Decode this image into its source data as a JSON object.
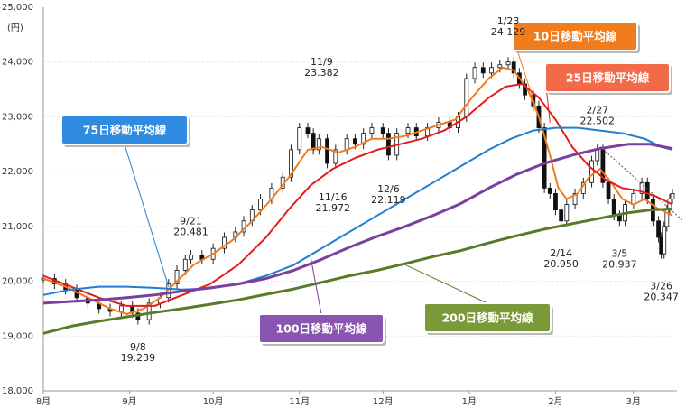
{
  "chart_data": {
    "type": "candlestick",
    "unit_label": "(円)",
    "ylim": [
      18000,
      25000
    ],
    "yticks": [
      {
        "value": 25000,
        "label": "25,000"
      },
      {
        "value": 24000,
        "label": "24,000"
      },
      {
        "value": 23000,
        "label": "23,000"
      },
      {
        "value": 22000,
        "label": "22,000"
      },
      {
        "value": 21000,
        "label": "21,000"
      },
      {
        "value": 20000,
        "label": "20,000"
      },
      {
        "value": 19000,
        "label": "19,000"
      },
      {
        "value": 18000,
        "label": "18,000"
      }
    ],
    "xlim": [
      0,
      226
    ],
    "months": [
      {
        "label": "8月",
        "day": 0
      },
      {
        "label": "9月",
        "day": 31
      },
      {
        "label": "10月",
        "day": 61
      },
      {
        "label": "11月",
        "day": 92
      },
      {
        "label": "12月",
        "day": 122
      },
      {
        "label": "1月",
        "day": 153
      },
      {
        "label": "2月",
        "day": 184
      },
      {
        "label": "3月",
        "day": 212
      }
    ],
    "closes": [
      {
        "day": 0,
        "value": 20050
      },
      {
        "day": 4,
        "value": 19950
      },
      {
        "day": 8,
        "value": 19850
      },
      {
        "day": 12,
        "value": 19700
      },
      {
        "day": 16,
        "value": 19600
      },
      {
        "day": 20,
        "value": 19500
      },
      {
        "day": 24,
        "value": 19450
      },
      {
        "day": 28,
        "value": 19550
      },
      {
        "day": 32,
        "value": 19420
      },
      {
        "day": 34,
        "value": 19300
      },
      {
        "day": 38,
        "value": 19600
      },
      {
        "day": 42,
        "value": 19700
      },
      {
        "day": 45,
        "value": 19950
      },
      {
        "day": 48,
        "value": 20200
      },
      {
        "day": 51,
        "value": 20400
      },
      {
        "day": 53,
        "value": 20480
      },
      {
        "day": 57,
        "value": 20400
      },
      {
        "day": 61,
        "value": 20600
      },
      {
        "day": 65,
        "value": 20800
      },
      {
        "day": 69,
        "value": 20900
      },
      {
        "day": 72,
        "value": 21100
      },
      {
        "day": 75,
        "value": 21300
      },
      {
        "day": 78,
        "value": 21500
      },
      {
        "day": 82,
        "value": 21700
      },
      {
        "day": 86,
        "value": 21900
      },
      {
        "day": 89,
        "value": 22400
      },
      {
        "day": 92,
        "value": 22800
      },
      {
        "day": 95,
        "value": 22700
      },
      {
        "day": 97,
        "value": 22400
      },
      {
        "day": 99,
        "value": 22600
      },
      {
        "day": 102,
        "value": 22150
      },
      {
        "day": 105,
        "value": 22400
      },
      {
        "day": 109,
        "value": 22600
      },
      {
        "day": 112,
        "value": 22500
      },
      {
        "day": 115,
        "value": 22700
      },
      {
        "day": 118,
        "value": 22800
      },
      {
        "day": 122,
        "value": 22700
      },
      {
        "day": 124,
        "value": 22300
      },
      {
        "day": 127,
        "value": 22700
      },
      {
        "day": 131,
        "value": 22800
      },
      {
        "day": 134,
        "value": 22650
      },
      {
        "day": 138,
        "value": 22800
      },
      {
        "day": 142,
        "value": 22900
      },
      {
        "day": 146,
        "value": 22800
      },
      {
        "day": 149,
        "value": 23000
      },
      {
        "day": 152,
        "value": 23700
      },
      {
        "day": 155,
        "value": 23900
      },
      {
        "day": 158,
        "value": 23800
      },
      {
        "day": 161,
        "value": 23900
      },
      {
        "day": 164,
        "value": 23950
      },
      {
        "day": 167,
        "value": 24000
      },
      {
        "day": 169,
        "value": 23800
      },
      {
        "day": 171,
        "value": 23600
      },
      {
        "day": 173,
        "value": 23400
      },
      {
        "day": 176,
        "value": 23200
      },
      {
        "day": 178,
        "value": 22800
      },
      {
        "day": 180,
        "value": 21700
      },
      {
        "day": 182,
        "value": 21600
      },
      {
        "day": 184,
        "value": 21300
      },
      {
        "day": 186,
        "value": 21100
      },
      {
        "day": 188,
        "value": 21400
      },
      {
        "day": 191,
        "value": 21600
      },
      {
        "day": 194,
        "value": 21800
      },
      {
        "day": 197,
        "value": 22200
      },
      {
        "day": 199,
        "value": 22400
      },
      {
        "day": 201,
        "value": 21800
      },
      {
        "day": 203,
        "value": 21500
      },
      {
        "day": 205,
        "value": 21200
      },
      {
        "day": 207,
        "value": 21100
      },
      {
        "day": 209,
        "value": 21400
      },
      {
        "day": 212,
        "value": 21600
      },
      {
        "day": 215,
        "value": 21800
      },
      {
        "day": 217,
        "value": 21500
      },
      {
        "day": 219,
        "value": 21100
      },
      {
        "day": 221,
        "value": 20800
      },
      {
        "day": 222,
        "value": 20500
      },
      {
        "day": 223,
        "value": 21000
      },
      {
        "day": 224,
        "value": 21300
      },
      {
        "day": 225,
        "value": 21500
      },
      {
        "day": 226,
        "value": 21600
      }
    ],
    "series": [
      {
        "name": "10日移動平均線",
        "color": "#f07c1e",
        "points": [
          {
            "day": 0,
            "value": 20050
          },
          {
            "day": 8,
            "value": 19900
          },
          {
            "day": 16,
            "value": 19700
          },
          {
            "day": 24,
            "value": 19500
          },
          {
            "day": 30,
            "value": 19400
          },
          {
            "day": 36,
            "value": 19500
          },
          {
            "day": 42,
            "value": 19700
          },
          {
            "day": 48,
            "value": 20000
          },
          {
            "day": 54,
            "value": 20300
          },
          {
            "day": 61,
            "value": 20500
          },
          {
            "day": 68,
            "value": 20750
          },
          {
            "day": 75,
            "value": 21100
          },
          {
            "day": 82,
            "value": 21500
          },
          {
            "day": 89,
            "value": 21950
          },
          {
            "day": 95,
            "value": 22400
          },
          {
            "day": 100,
            "value": 22450
          },
          {
            "day": 106,
            "value": 22350
          },
          {
            "day": 112,
            "value": 22450
          },
          {
            "day": 118,
            "value": 22600
          },
          {
            "day": 124,
            "value": 22600
          },
          {
            "day": 130,
            "value": 22650
          },
          {
            "day": 136,
            "value": 22750
          },
          {
            "day": 142,
            "value": 22850
          },
          {
            "day": 148,
            "value": 22950
          },
          {
            "day": 154,
            "value": 23350
          },
          {
            "day": 160,
            "value": 23700
          },
          {
            "day": 165,
            "value": 23900
          },
          {
            "day": 169,
            "value": 23850
          },
          {
            "day": 174,
            "value": 23500
          },
          {
            "day": 178,
            "value": 23000
          },
          {
            "day": 182,
            "value": 22300
          },
          {
            "day": 185,
            "value": 21700
          },
          {
            "day": 188,
            "value": 21500
          },
          {
            "day": 192,
            "value": 21600
          },
          {
            "day": 196,
            "value": 21900
          },
          {
            "day": 200,
            "value": 22050
          },
          {
            "day": 204,
            "value": 21800
          },
          {
            "day": 208,
            "value": 21500
          },
          {
            "day": 212,
            "value": 21400
          },
          {
            "day": 216,
            "value": 21500
          },
          {
            "day": 220,
            "value": 21350
          },
          {
            "day": 224,
            "value": 21250
          },
          {
            "day": 226,
            "value": 21200
          }
        ]
      },
      {
        "name": "25日移動平均線",
        "color": "#e41c1c",
        "points": [
          {
            "day": 0,
            "value": 20100
          },
          {
            "day": 10,
            "value": 19900
          },
          {
            "day": 20,
            "value": 19700
          },
          {
            "day": 30,
            "value": 19550
          },
          {
            "day": 40,
            "value": 19550
          },
          {
            "day": 50,
            "value": 19750
          },
          {
            "day": 60,
            "value": 19950
          },
          {
            "day": 70,
            "value": 20300
          },
          {
            "day": 80,
            "value": 20800
          },
          {
            "day": 88,
            "value": 21300
          },
          {
            "day": 96,
            "value": 21750
          },
          {
            "day": 104,
            "value": 22050
          },
          {
            "day": 112,
            "value": 22250
          },
          {
            "day": 120,
            "value": 22400
          },
          {
            "day": 128,
            "value": 22500
          },
          {
            "day": 136,
            "value": 22600
          },
          {
            "day": 144,
            "value": 22750
          },
          {
            "day": 152,
            "value": 23000
          },
          {
            "day": 160,
            "value": 23350
          },
          {
            "day": 166,
            "value": 23550
          },
          {
            "day": 172,
            "value": 23600
          },
          {
            "day": 178,
            "value": 23350
          },
          {
            "day": 184,
            "value": 22950
          },
          {
            "day": 190,
            "value": 22450
          },
          {
            "day": 196,
            "value": 22100
          },
          {
            "day": 202,
            "value": 21850
          },
          {
            "day": 208,
            "value": 21700
          },
          {
            "day": 214,
            "value": 21650
          },
          {
            "day": 220,
            "value": 21550
          },
          {
            "day": 226,
            "value": 21400
          }
        ]
      },
      {
        "name": "75日移動平均線",
        "color": "#1e7fd2",
        "points": [
          {
            "day": 0,
            "value": 19750
          },
          {
            "day": 10,
            "value": 19850
          },
          {
            "day": 20,
            "value": 19900
          },
          {
            "day": 30,
            "value": 19900
          },
          {
            "day": 40,
            "value": 19880
          },
          {
            "day": 50,
            "value": 19850
          },
          {
            "day": 60,
            "value": 19870
          },
          {
            "day": 70,
            "value": 19950
          },
          {
            "day": 80,
            "value": 20100
          },
          {
            "day": 90,
            "value": 20300
          },
          {
            "day": 100,
            "value": 20600
          },
          {
            "day": 110,
            "value": 20900
          },
          {
            "day": 120,
            "value": 21200
          },
          {
            "day": 130,
            "value": 21500
          },
          {
            "day": 140,
            "value": 21800
          },
          {
            "day": 150,
            "value": 22100
          },
          {
            "day": 160,
            "value": 22400
          },
          {
            "day": 168,
            "value": 22600
          },
          {
            "day": 176,
            "value": 22750
          },
          {
            "day": 184,
            "value": 22800
          },
          {
            "day": 192,
            "value": 22800
          },
          {
            "day": 200,
            "value": 22750
          },
          {
            "day": 208,
            "value": 22700
          },
          {
            "day": 216,
            "value": 22600
          },
          {
            "day": 222,
            "value": 22450
          },
          {
            "day": 226,
            "value": 22400
          }
        ]
      },
      {
        "name": "100日移動平均線",
        "color": "#7b3fa0",
        "points": [
          {
            "day": 0,
            "value": 19600
          },
          {
            "day": 10,
            "value": 19630
          },
          {
            "day": 20,
            "value": 19660
          },
          {
            "day": 30,
            "value": 19700
          },
          {
            "day": 40,
            "value": 19750
          },
          {
            "day": 50,
            "value": 19820
          },
          {
            "day": 60,
            "value": 19880
          },
          {
            "day": 70,
            "value": 19950
          },
          {
            "day": 80,
            "value": 20050
          },
          {
            "day": 90,
            "value": 20200
          },
          {
            "day": 100,
            "value": 20400
          },
          {
            "day": 110,
            "value": 20620
          },
          {
            "day": 120,
            "value": 20820
          },
          {
            "day": 130,
            "value": 21000
          },
          {
            "day": 140,
            "value": 21200
          },
          {
            "day": 150,
            "value": 21420
          },
          {
            "day": 160,
            "value": 21700
          },
          {
            "day": 170,
            "value": 21950
          },
          {
            "day": 180,
            "value": 22150
          },
          {
            "day": 190,
            "value": 22300
          },
          {
            "day": 200,
            "value": 22420
          },
          {
            "day": 210,
            "value": 22500
          },
          {
            "day": 218,
            "value": 22500
          },
          {
            "day": 226,
            "value": 22420
          }
        ]
      },
      {
        "name": "200日移動平均線",
        "color": "#5a7a2a",
        "points": [
          {
            "day": 0,
            "value": 19050
          },
          {
            "day": 10,
            "value": 19180
          },
          {
            "day": 20,
            "value": 19270
          },
          {
            "day": 30,
            "value": 19350
          },
          {
            "day": 40,
            "value": 19430
          },
          {
            "day": 50,
            "value": 19500
          },
          {
            "day": 60,
            "value": 19580
          },
          {
            "day": 70,
            "value": 19660
          },
          {
            "day": 80,
            "value": 19760
          },
          {
            "day": 90,
            "value": 19860
          },
          {
            "day": 100,
            "value": 19980
          },
          {
            "day": 110,
            "value": 20100
          },
          {
            "day": 120,
            "value": 20200
          },
          {
            "day": 130,
            "value": 20320
          },
          {
            "day": 140,
            "value": 20450
          },
          {
            "day": 150,
            "value": 20560
          },
          {
            "day": 160,
            "value": 20700
          },
          {
            "day": 170,
            "value": 20830
          },
          {
            "day": 180,
            "value": 20950
          },
          {
            "day": 190,
            "value": 21050
          },
          {
            "day": 200,
            "value": 21150
          },
          {
            "day": 210,
            "value": 21250
          },
          {
            "day": 218,
            "value": 21300
          },
          {
            "day": 226,
            "value": 21320
          }
        ]
      }
    ],
    "legend_boxes": [
      {
        "label": "75日移動平均線",
        "fill": "#2e8be0",
        "series": 2
      },
      {
        "label": "10日移動平均線",
        "fill": "#f07c1e",
        "series": 0
      },
      {
        "label": "25日移動平均線",
        "fill": "#f26a4a",
        "series": 1
      },
      {
        "label": "100日移動平均線",
        "fill": "#8a55b0",
        "series": 3
      },
      {
        "label": "200日移動平均線",
        "fill": "#7a9a3a",
        "series": 4
      }
    ],
    "annotations": [
      {
        "date": "9/8",
        "value": "19.239",
        "day": 34,
        "price": 19239,
        "pos": "below"
      },
      {
        "date": "9/21",
        "value": "20.481",
        "day": 53,
        "price": 20481,
        "pos": "above"
      },
      {
        "date": "11/9",
        "value": "23.382",
        "day": 100,
        "price": 23382,
        "pos": "above"
      },
      {
        "date": "11/16",
        "value": "21.972",
        "day": 104,
        "price": 21972,
        "pos": "below"
      },
      {
        "date": "12/6",
        "value": "22.119",
        "day": 124,
        "price": 22119,
        "pos": "below"
      },
      {
        "date": "1/23",
        "value": "24.129",
        "day": 167,
        "price": 24129,
        "pos": "above"
      },
      {
        "date": "2/27",
        "value": "22.502",
        "day": 199,
        "price": 22502,
        "pos": "above"
      },
      {
        "date": "2/14",
        "value": "20.950",
        "day": 186,
        "price": 20950,
        "pos": "below"
      },
      {
        "date": "3/5",
        "value": "20.937",
        "day": 207,
        "price": 20937,
        "pos": "below"
      },
      {
        "date": "3/26",
        "value": "20.347",
        "day": 222,
        "price": 20347,
        "pos": "below"
      }
    ]
  }
}
